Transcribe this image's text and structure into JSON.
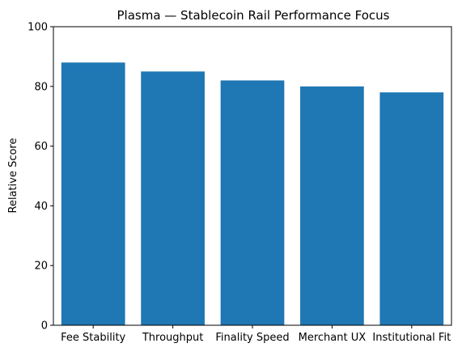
{
  "chart_data": {
    "type": "bar",
    "title": "Plasma — Stablecoin Rail Performance Focus",
    "xlabel": "",
    "ylabel": "Relative Score",
    "categories": [
      "Fee Stability",
      "Throughput",
      "Finality Speed",
      "Merchant UX",
      "Institutional Fit"
    ],
    "values": [
      88,
      85,
      82,
      80,
      78
    ],
    "ylim": [
      0,
      100
    ],
    "yticks": [
      0,
      20,
      40,
      60,
      80,
      100
    ],
    "grid": false,
    "legend": "none",
    "bar_color": "#1f77b4"
  }
}
